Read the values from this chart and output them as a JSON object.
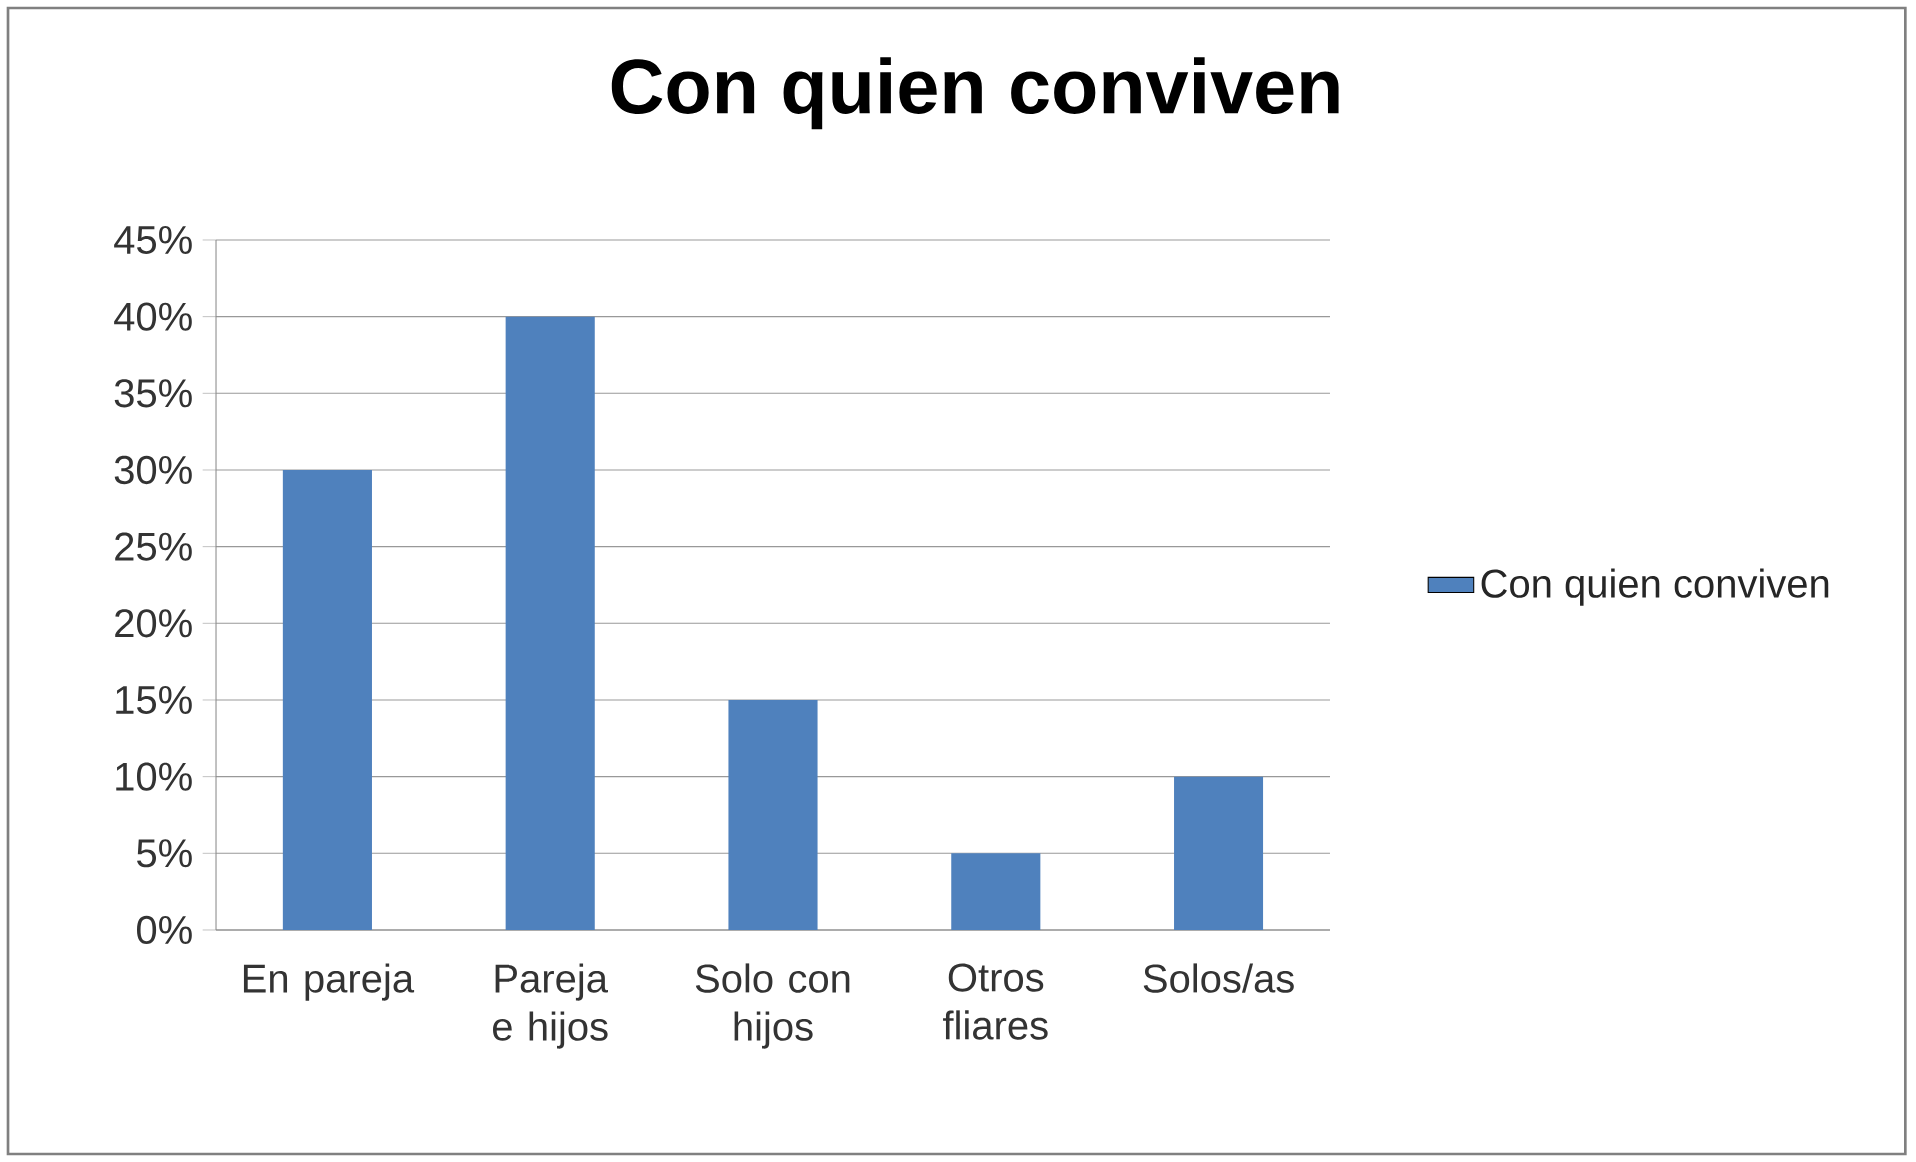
{
  "chart_data": {
    "type": "bar",
    "title": "Con quien conviven",
    "categories": [
      "En pareja",
      "Pareja e hijos",
      "Solo con hijos",
      "Otros fliares",
      "Solos/as"
    ],
    "series": [
      {
        "name": "Con quien conviven",
        "color": "#4f81bd",
        "values": [
          30,
          40,
          15,
          5,
          10
        ]
      }
    ],
    "ylim": [
      0,
      45
    ],
    "yticks": [
      {
        "value": 0,
        "label": "0%"
      },
      {
        "value": 5,
        "label": "5%"
      },
      {
        "value": 10,
        "label": "10%"
      },
      {
        "value": 15,
        "label": "15%"
      },
      {
        "value": 20,
        "label": "20%"
      },
      {
        "value": 25,
        "label": "25%"
      },
      {
        "value": 30,
        "label": "30%"
      },
      {
        "value": 35,
        "label": "35%"
      },
      {
        "value": 40,
        "label": "40%"
      },
      {
        "value": 45,
        "label": "45%"
      }
    ],
    "grid": "y",
    "legend": "right"
  }
}
